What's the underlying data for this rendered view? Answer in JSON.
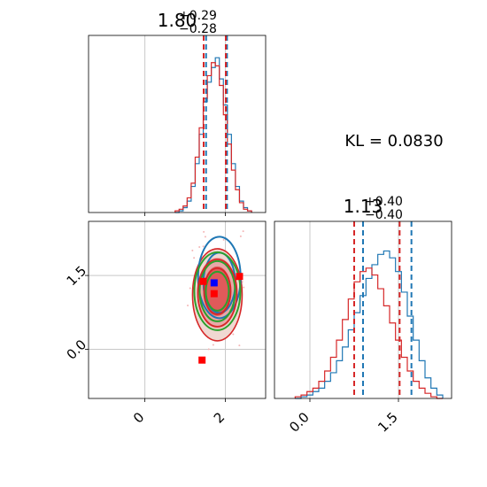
{
  "chart_data": {
    "type": "corner",
    "annotation": "KL = 0.0830",
    "colors": {
      "first": "#1f77b4",
      "second": "#d62728",
      "contour_outer": "#2ca02c",
      "marker_truth": "#0000ff",
      "marker_other": "#ff0000"
    },
    "panels": [
      {
        "id": "hist_param1",
        "type": "histogram",
        "title": {
          "main": "1.80",
          "plus": "+0.29",
          "minus": "−0.28"
        },
        "xlim": [
          -1.4,
          3.0
        ],
        "xticks": [
          0,
          2
        ],
        "quantile_lines": {
          "first": [
            1.52,
            2.04
          ],
          "second": [
            1.46,
            2.01
          ]
        },
        "series": [
          {
            "color": "#1f77b4",
            "x": [
              0.8,
              0.9,
              1.0,
              1.1,
              1.2,
              1.3,
              1.4,
              1.5,
              1.6,
              1.7,
              1.8,
              1.9,
              2.0,
              2.1,
              2.2,
              2.3,
              2.4,
              2.5,
              2.6
            ],
            "y": [
              0,
              1,
              3,
              7,
              16,
              30,
              48,
              68,
              80,
              89,
              95,
              82,
              66,
              48,
              30,
              16,
              7,
              3,
              1
            ]
          },
          {
            "color": "#d62728",
            "x": [
              0.8,
              0.9,
              1.0,
              1.1,
              1.2,
              1.3,
              1.4,
              1.5,
              1.6,
              1.7,
              1.8,
              1.9,
              2.0,
              2.1,
              2.2,
              2.3,
              2.4,
              2.5,
              2.6
            ],
            "y": [
              1,
              2,
              4,
              9,
              18,
              34,
              52,
              70,
              84,
              92,
              90,
              78,
              60,
              42,
              26,
              14,
              6,
              2,
              1
            ]
          }
        ]
      },
      {
        "id": "hist_param2",
        "type": "histogram",
        "title": {
          "main": "1.13",
          "plus": "+0.40",
          "minus": "−0.40"
        },
        "xlim": [
          -0.6,
          2.4
        ],
        "xticks": [
          0.0,
          1.5
        ],
        "xtick_labels": [
          "0.0",
          "1.5"
        ],
        "quantile_lines": {
          "first": [
            0.9,
            1.72
          ],
          "second": [
            0.75,
            1.52
          ]
        },
        "series": [
          {
            "color": "#1f77b4",
            "x": [
              -0.2,
              -0.1,
              0.0,
              0.1,
              0.2,
              0.3,
              0.4,
              0.5,
              0.6,
              0.7,
              0.8,
              0.9,
              1.0,
              1.1,
              1.2,
              1.3,
              1.4,
              1.5,
              1.6,
              1.7,
              1.8,
              1.9,
              2.0,
              2.1,
              2.2
            ],
            "y": [
              0,
              1,
              2,
              4,
              6,
              10,
              15,
              22,
              30,
              40,
              50,
              60,
              70,
              78,
              84,
              86,
              82,
              74,
              62,
              48,
              34,
              22,
              12,
              6,
              2
            ]
          },
          {
            "color": "#d62728",
            "x": [
              -0.2,
              -0.1,
              0.0,
              0.1,
              0.2,
              0.3,
              0.4,
              0.5,
              0.6,
              0.7,
              0.8,
              0.9,
              1.0,
              1.1,
              1.2,
              1.3,
              1.4,
              1.5,
              1.6,
              1.7,
              1.8,
              1.9,
              2.0,
              2.1,
              2.2
            ],
            "y": [
              1,
              2,
              4,
              6,
              10,
              16,
              24,
              34,
              46,
              58,
              68,
              74,
              76,
              72,
              64,
              54,
              44,
              34,
              24,
              16,
              10,
              6,
              3,
              1,
              0
            ]
          }
        ]
      },
      {
        "id": "contour_2d",
        "type": "contour",
        "xlim": [
          -1.4,
          3.0
        ],
        "ylim": [
          -1.0,
          2.6
        ],
        "xticks": [
          0,
          2
        ],
        "yticks": [
          0.0,
          1.5
        ],
        "ytick_labels": [
          "0.0",
          "1.5"
        ],
        "center": {
          "first": [
            1.85,
            1.28
          ],
          "second": [
            1.8,
            1.18
          ]
        },
        "markers": [
          {
            "color": "#0000ff",
            "x": 1.72,
            "y": 1.35
          },
          {
            "color": "#ff0000",
            "x": 1.72,
            "y": 1.13
          },
          {
            "color": "#ff0000",
            "x": 1.45,
            "y": 1.38
          },
          {
            "color": "#ff0000",
            "x": 2.35,
            "y": 1.48
          },
          {
            "color": "#ff0000",
            "x": 1.42,
            "y": -0.22
          }
        ]
      }
    ]
  }
}
